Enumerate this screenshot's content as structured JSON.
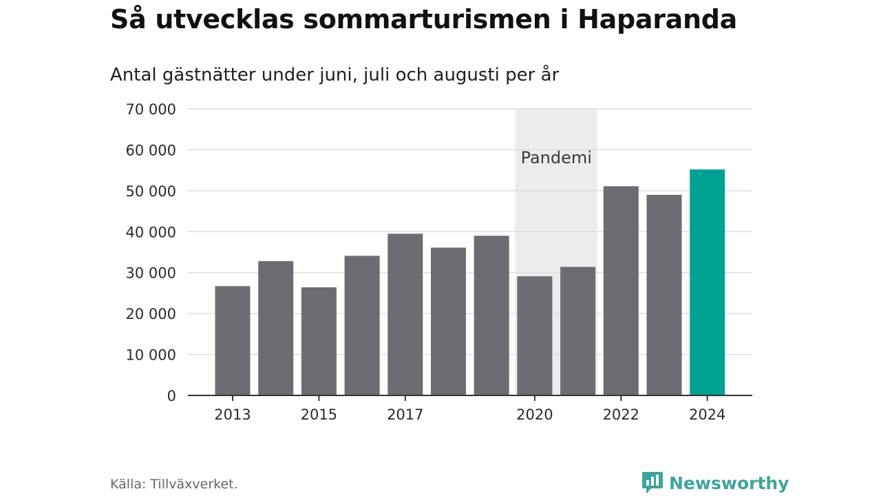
{
  "title": "Så utvecklas sommarturismen i Haparanda",
  "subtitle": "Antal gästnätter under juni, juli och augusti per år",
  "source": "Källa: Tillväxverket.",
  "brand": "Newsworthy",
  "colors": {
    "bar": "#6d6c73",
    "highlight": "#00a195",
    "pandemic_band": "#ececec",
    "grid": "#dddddd",
    "axis": "#333333",
    "brand": "#3fa49b"
  },
  "chart_data": {
    "type": "bar",
    "title": "Så utvecklas sommarturismen i Haparanda",
    "subtitle": "Antal gästnätter under juni, juli och augusti per år",
    "categories": [
      "2013",
      "2014",
      "2015",
      "2016",
      "2017",
      "2018",
      "2019",
      "2020",
      "2021",
      "2022",
      "2023",
      "2024"
    ],
    "x_tick_labels": [
      "2013",
      "2015",
      "2017",
      "2020",
      "2022",
      "2024"
    ],
    "values": [
      26700,
      32800,
      26400,
      34100,
      39500,
      36100,
      39000,
      29100,
      31400,
      51100,
      49000,
      55200
    ],
    "highlight_category": "2024",
    "ylim": [
      0,
      70000
    ],
    "y_ticks": [
      0,
      10000,
      20000,
      30000,
      40000,
      50000,
      60000,
      70000
    ],
    "y_tick_labels": [
      "0",
      "10 000",
      "20 000",
      "30 000",
      "40 000",
      "50 000",
      "60 000",
      "70 000"
    ],
    "grid": true,
    "annotation": {
      "label": "Pandemi",
      "from": "2020",
      "to": "2021"
    }
  }
}
